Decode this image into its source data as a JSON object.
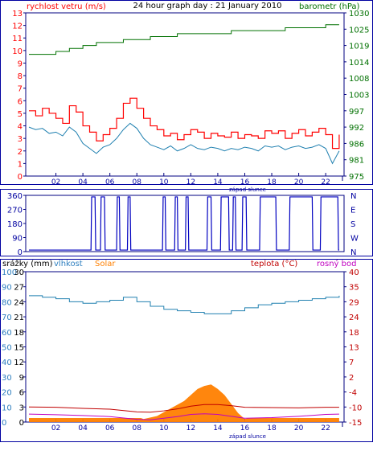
{
  "chart_data": [
    {
      "type": "line",
      "title": "24 hour graph day : 21 January 2010",
      "left_axis_label": "rychlost vetru (m/s)",
      "right_axis_label": "barometr (hPa)",
      "left_ticks": [
        0,
        1,
        2,
        3,
        4,
        5,
        6,
        7,
        8,
        9,
        10,
        11,
        12,
        13
      ],
      "right_ticks": [
        975,
        981,
        986,
        992,
        997,
        1003,
        1008,
        1014,
        1019,
        1025,
        1030
      ],
      "ylim_left": [
        0,
        13
      ],
      "ylim_right": [
        975,
        1030
      ],
      "x_ticks": [
        "02",
        "04",
        "06",
        "08",
        "10",
        "12",
        "14",
        "16",
        "18",
        "20",
        "22"
      ],
      "x_annotation": "západ slunce",
      "colors": {
        "gust": "#ff0000",
        "speed": "#2080b0",
        "pressure": "#007000",
        "left_axis": "#ff0000",
        "right_axis": "#007000",
        "frame": "#0000a0"
      },
      "series": [
        {
          "id": "pressure",
          "x": [
            0,
            1,
            2,
            3,
            4,
            5,
            6,
            7,
            8,
            9,
            10,
            11,
            12,
            13,
            14,
            15,
            16,
            17,
            18,
            19,
            20,
            21,
            22,
            23
          ],
          "values": [
            1016,
            1016,
            1017,
            1018,
            1019,
            1020,
            1020,
            1021,
            1021,
            1022,
            1022,
            1023,
            1023,
            1023,
            1023,
            1024,
            1024,
            1024,
            1024,
            1025,
            1025,
            1025,
            1026,
            1026
          ]
        },
        {
          "id": "gust",
          "x": [
            0,
            0.5,
            1,
            1.5,
            2,
            2.5,
            3,
            3.5,
            4,
            4.5,
            5,
            5.5,
            6,
            6.5,
            7,
            7.5,
            8,
            8.5,
            9,
            9.5,
            10,
            10.5,
            11,
            11.5,
            12,
            12.5,
            13,
            13.5,
            14,
            14.5,
            15,
            15.5,
            16,
            16.5,
            17,
            17.5,
            18,
            18.5,
            19,
            19.5,
            20,
            20.5,
            21,
            21.5,
            22,
            22.5,
            23
          ],
          "values": [
            5.2,
            4.8,
            5.4,
            5.0,
            4.6,
            4.2,
            5.6,
            5.1,
            4.0,
            3.5,
            2.8,
            3.3,
            3.8,
            4.6,
            5.8,
            6.2,
            5.4,
            4.6,
            4.0,
            3.7,
            3.2,
            3.4,
            2.9,
            3.3,
            3.7,
            3.5,
            3.0,
            3.4,
            3.2,
            3.1,
            3.5,
            3.0,
            3.3,
            3.2,
            3.0,
            3.6,
            3.4,
            3.6,
            3.0,
            3.4,
            3.7,
            3.2,
            3.5,
            3.8,
            3.3,
            2.2,
            3.3
          ]
        },
        {
          "id": "speed",
          "x": [
            0,
            0.5,
            1,
            1.5,
            2,
            2.5,
            3,
            3.5,
            4,
            4.5,
            5,
            5.5,
            6,
            6.5,
            7,
            7.5,
            8,
            8.5,
            9,
            9.5,
            10,
            10.5,
            11,
            11.5,
            12,
            12.5,
            13,
            13.5,
            14,
            14.5,
            15,
            15.5,
            16,
            16.5,
            17,
            17.5,
            18,
            18.5,
            19,
            19.5,
            20,
            20.5,
            21,
            21.5,
            22,
            22.5,
            23
          ],
          "values": [
            3.9,
            3.7,
            3.8,
            3.4,
            3.5,
            3.2,
            3.9,
            3.5,
            2.6,
            2.2,
            1.8,
            2.3,
            2.5,
            3.0,
            3.7,
            4.2,
            3.8,
            3.0,
            2.5,
            2.3,
            2.1,
            2.4,
            2.0,
            2.2,
            2.5,
            2.2,
            2.1,
            2.3,
            2.2,
            2.0,
            2.2,
            2.1,
            2.3,
            2.2,
            2.0,
            2.4,
            2.3,
            2.4,
            2.1,
            2.3,
            2.4,
            2.2,
            2.3,
            2.5,
            2.2,
            1.0,
            2.0
          ]
        }
      ]
    },
    {
      "type": "line",
      "left_ticks": [
        0,
        90,
        180,
        270,
        360
      ],
      "right_ticks": [
        "N",
        "W",
        "S",
        "E",
        "N"
      ],
      "ylim": [
        0,
        360
      ],
      "colors": {
        "direction": "#0000c0",
        "left_axis": "#0000a0"
      },
      "series": [
        {
          "id": "direction",
          "x": [
            0,
            4.6,
            4.65,
            4.9,
            4.95,
            5.3,
            5.35,
            5.6,
            5.65,
            6.5,
            6.55,
            6.7,
            6.75,
            7.3,
            7.35,
            7.5,
            7.55,
            9.9,
            9.95,
            10.1,
            10.15,
            10.8,
            10.85,
            11.0,
            11.05,
            11.6,
            11.65,
            11.8,
            11.85,
            13.2,
            13.25,
            13.5,
            13.55,
            14.2,
            14.25,
            14.8,
            14.85,
            15.1,
            15.15,
            15.3,
            15.35,
            15.8,
            15.85,
            16.1,
            16.15,
            17.1,
            17.15,
            18.3,
            18.35,
            19.3,
            19.35,
            21.0,
            21.05,
            21.6,
            21.65,
            22.9,
            22.95,
            23
          ],
          "values": [
            10,
            10,
            350,
            350,
            10,
            10,
            350,
            350,
            10,
            10,
            350,
            350,
            10,
            10,
            350,
            350,
            10,
            10,
            350,
            350,
            10,
            10,
            350,
            350,
            10,
            10,
            350,
            350,
            10,
            10,
            350,
            350,
            10,
            10,
            350,
            350,
            10,
            10,
            350,
            350,
            10,
            10,
            350,
            350,
            10,
            10,
            350,
            350,
            10,
            10,
            350,
            350,
            10,
            10,
            350,
            350,
            10,
            10
          ]
        }
      ]
    },
    {
      "type": "area",
      "legend": [
        {
          "label": "srážky (mm)",
          "color": "#000000"
        },
        {
          "label": "vlhkost",
          "color": "#3080c0"
        },
        {
          "label": "Solar",
          "color": "#ff8000"
        },
        {
          "label": "teplota (°C)",
          "color": "#c00000"
        },
        {
          "label": "rosný bod",
          "color": "#c000c0"
        }
      ],
      "left_ticks_rain": [
        0,
        3,
        6,
        9,
        12,
        15,
        18,
        21,
        24,
        27,
        30
      ],
      "left_ticks_humidity": [
        0,
        10,
        20,
        30,
        40,
        50,
        60,
        70,
        80,
        90,
        100
      ],
      "right_ticks": [
        -15,
        -10,
        -4,
        2,
        7,
        13,
        18,
        24,
        29,
        35,
        40
      ],
      "ylim_left": [
        0,
        100
      ],
      "ylim_right": [
        -15,
        40
      ],
      "x_ticks": [
        "02",
        "04",
        "06",
        "08",
        "10",
        "12",
        "14",
        "16",
        "18",
        "20",
        "22"
      ],
      "x_annotation": "západ slunce",
      "colors": {
        "humidity": "#2080b0",
        "solar": "#ff8000",
        "temperature": "#c00000",
        "dewpoint": "#c000c0",
        "frame": "#0000a0"
      },
      "series": [
        {
          "id": "humidity",
          "x": [
            0,
            1,
            2,
            3,
            4,
            5,
            6,
            7,
            8,
            9,
            10,
            11,
            12,
            13,
            14,
            15,
            16,
            17,
            18,
            19,
            20,
            21,
            22,
            23
          ],
          "values": [
            84,
            83,
            82,
            80,
            79,
            80,
            81,
            83,
            80,
            77,
            75,
            74,
            73,
            72,
            72,
            74,
            76,
            78,
            79,
            80,
            81,
            82,
            83,
            84
          ]
        },
        {
          "id": "temperature",
          "x": [
            0,
            2,
            4,
            6,
            8,
            9,
            10,
            11,
            12,
            13,
            14,
            15,
            16,
            18,
            20,
            22,
            23
          ],
          "values": [
            -9.5,
            -9.6,
            -10.0,
            -10.3,
            -11.3,
            -11.4,
            -10.9,
            -10.2,
            -9.2,
            -8.6,
            -8.6,
            -9.0,
            -9.6,
            -9.7,
            -9.8,
            -9.6,
            -9.6
          ]
        },
        {
          "id": "dewpoint",
          "x": [
            0,
            2,
            4,
            6,
            8,
            9,
            10,
            11,
            12,
            13,
            14,
            15,
            16,
            18,
            20,
            22,
            23
          ],
          "values": [
            -12.1,
            -12.3,
            -12.6,
            -13.0,
            -14.0,
            -14.2,
            -13.6,
            -13.0,
            -12.2,
            -12.0,
            -12.2,
            -12.9,
            -13.6,
            -13.4,
            -12.9,
            -12.2,
            -12.1
          ]
        },
        {
          "id": "solar",
          "x": [
            8.5,
            9.5,
            10.5,
            11.5,
            12,
            12.5,
            13,
            13.5,
            14,
            14.5,
            15,
            15.5,
            16
          ],
          "values": [
            2,
            4,
            9,
            14,
            18,
            22,
            24,
            25,
            22,
            18,
            12,
            6,
            2
          ]
        },
        {
          "id": "precip",
          "x": [
            0,
            23
          ],
          "values": [
            0,
            0
          ]
        }
      ]
    }
  ]
}
